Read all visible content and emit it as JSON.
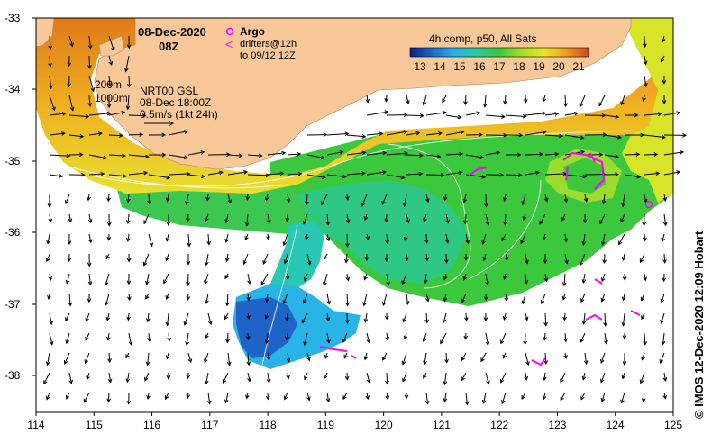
{
  "map": {
    "date": "08-Dec-2020",
    "hour": "08Z",
    "argo_label": "Argo",
    "drifters_label": "drifters@12h",
    "drifters_window": "to 09/12 12Z",
    "isobath_200": "200m",
    "isobath_1000": "1000m",
    "current_source": "NRT00 GSL",
    "current_time": "08-Dec 18:00Z",
    "scale_label": "0.5m/s (1kt 24h)",
    "colorbar_title": "4h comp, p50, All Sats",
    "colorbar_ticks": [
      "13",
      "14",
      "15",
      "16",
      "17",
      "18",
      "19",
      "20",
      "21"
    ],
    "credit": "© IMOS 12-Dec-2020 12:09 Hobart",
    "lon_ticks": [
      "114",
      "115",
      "116",
      "117",
      "118",
      "119",
      "120",
      "121",
      "122",
      "123",
      "124",
      "125"
    ],
    "lat_ticks": [
      "-33",
      "-34",
      "-35",
      "-36",
      "-37",
      "-38"
    ],
    "colors": {
      "land": "#f8c898",
      "drifter": "#ff00ff",
      "sst_scale": [
        "#0a1e82",
        "#1e64c8",
        "#28b4e6",
        "#2cc8a0",
        "#3cc83c",
        "#a0dc28",
        "#ece628",
        "#f0a01e",
        "#d2461e"
      ]
    }
  }
}
